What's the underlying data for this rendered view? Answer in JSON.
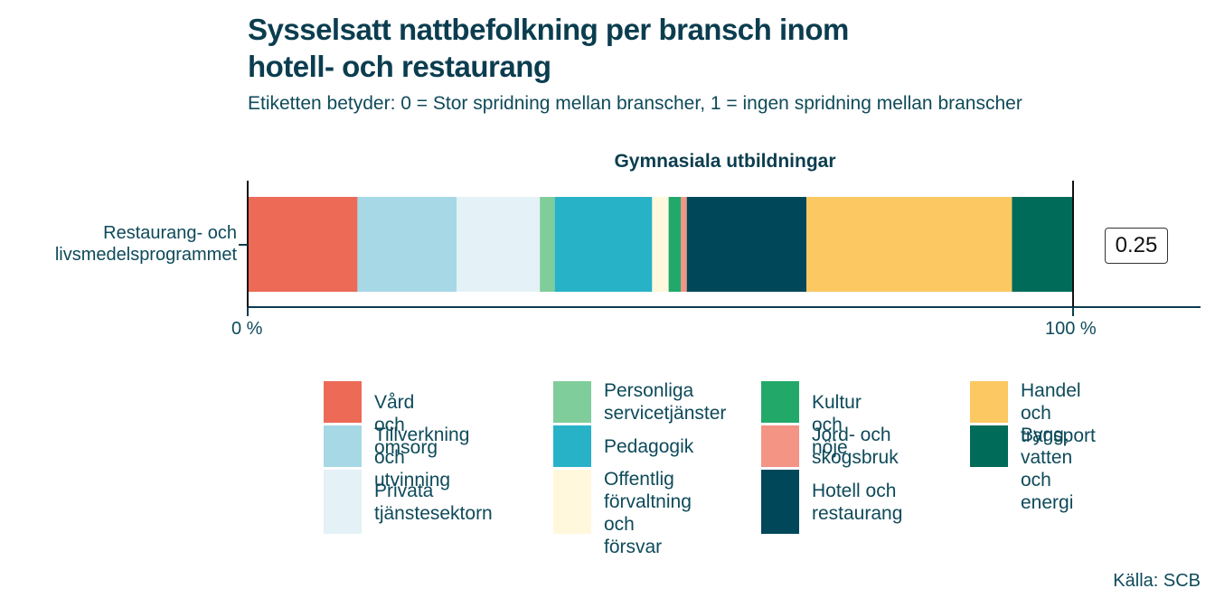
{
  "title": "Sysselsatt nattbefolkning per bransch inom hotell- och restaurang",
  "subtitle": "Etiketten betyder: 0 = Stor spridning mellan branscher, 1 = ingen spridning mellan branscher",
  "source": "Källa: SCB",
  "chart_data": {
    "type": "bar",
    "stacked": true,
    "orientation": "horizontal",
    "panel_title": "Gymnasiala utbildningar",
    "categories": [
      "Restaurang- och livsmedelsprogrammet"
    ],
    "x_ticks": [
      "0 %",
      "100 %"
    ],
    "xlim": [
      0,
      100
    ],
    "value_label": "0.25",
    "series": [
      {
        "name": "Vård och omsorg",
        "color": "#ec6a56",
        "values": [
          13.3
        ]
      },
      {
        "name": "Tillverkning och utvinning",
        "color": "#a6d8e6",
        "values": [
          12.0
        ]
      },
      {
        "name": "Privata tjänstesektorn",
        "color": "#e4f1f6",
        "values": [
          10.1
        ]
      },
      {
        "name": "Personliga servicetjänster",
        "color": "#7fcd9b",
        "values": [
          1.8
        ]
      },
      {
        "name": "Pedagogik",
        "color": "#28b2c8",
        "values": [
          11.8
        ]
      },
      {
        "name": "Offentlig förvaltning och försvar",
        "color": "#fff8dd",
        "values": [
          2.0
        ]
      },
      {
        "name": "Kultur och nöje",
        "color": "#22a96a",
        "values": [
          1.5
        ]
      },
      {
        "name": "Jord- och skogsbruk",
        "color": "#f39485",
        "values": [
          0.7
        ]
      },
      {
        "name": "Hotell och restaurang",
        "color": "#01475a",
        "values": [
          14.5
        ]
      },
      {
        "name": "Handel och transport",
        "color": "#fbc862",
        "values": [
          24.9
        ]
      },
      {
        "name": "Bygg, vatten och energi",
        "color": "#016b5a",
        "values": [
          7.4
        ]
      }
    ],
    "legend": {
      "position": "bottom",
      "columns": [
        [
          "Vård och omsorg",
          "Tillverkning\noch utvinning",
          "Privata\ntjänstesektorn"
        ],
        [
          "Personliga\nservicetjänster",
          "Pedagogik",
          "Offentlig\nförvaltning och\nförsvar"
        ],
        [
          "Kultur och nöje",
          "Jord- och\nskogsbruk",
          "Hotell och\nrestaurang"
        ],
        [
          "Handel och\ntransport",
          "Bygg, vatten\noch energi"
        ]
      ]
    }
  }
}
